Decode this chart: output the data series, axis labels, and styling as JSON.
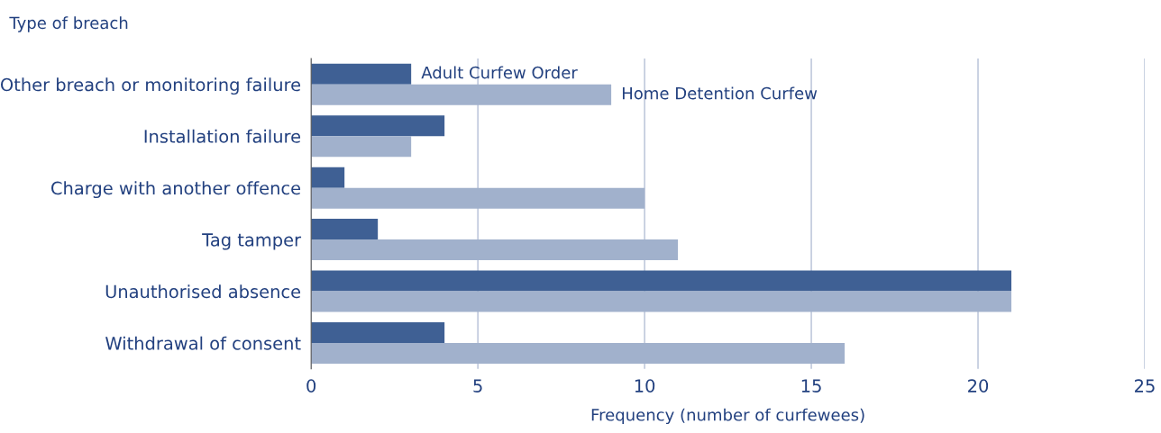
{
  "chart_data": {
    "type": "bar",
    "orientation": "horizontal",
    "xlabel": "Frequency (number of curfewees)",
    "ylabel": "Type of breach",
    "categories": [
      "Other breach or monitoring failure",
      "Installation failure",
      "Charge with another offence",
      "Tag tamper",
      "Unauthorised absence",
      "Withdrawal of consent"
    ],
    "series": [
      {
        "name": "Adult Curfew Order",
        "color": "#3f6094",
        "values": [
          3,
          4,
          1,
          2,
          21,
          4
        ]
      },
      {
        "name": "Home Detention Curfew",
        "color": "#a1b1cc",
        "values": [
          9,
          3,
          10,
          11,
          21,
          16
        ]
      }
    ],
    "xlim": [
      0,
      25
    ],
    "xticks": [
      0,
      5,
      10,
      15,
      20,
      25
    ],
    "grid": "x",
    "legend": false
  }
}
